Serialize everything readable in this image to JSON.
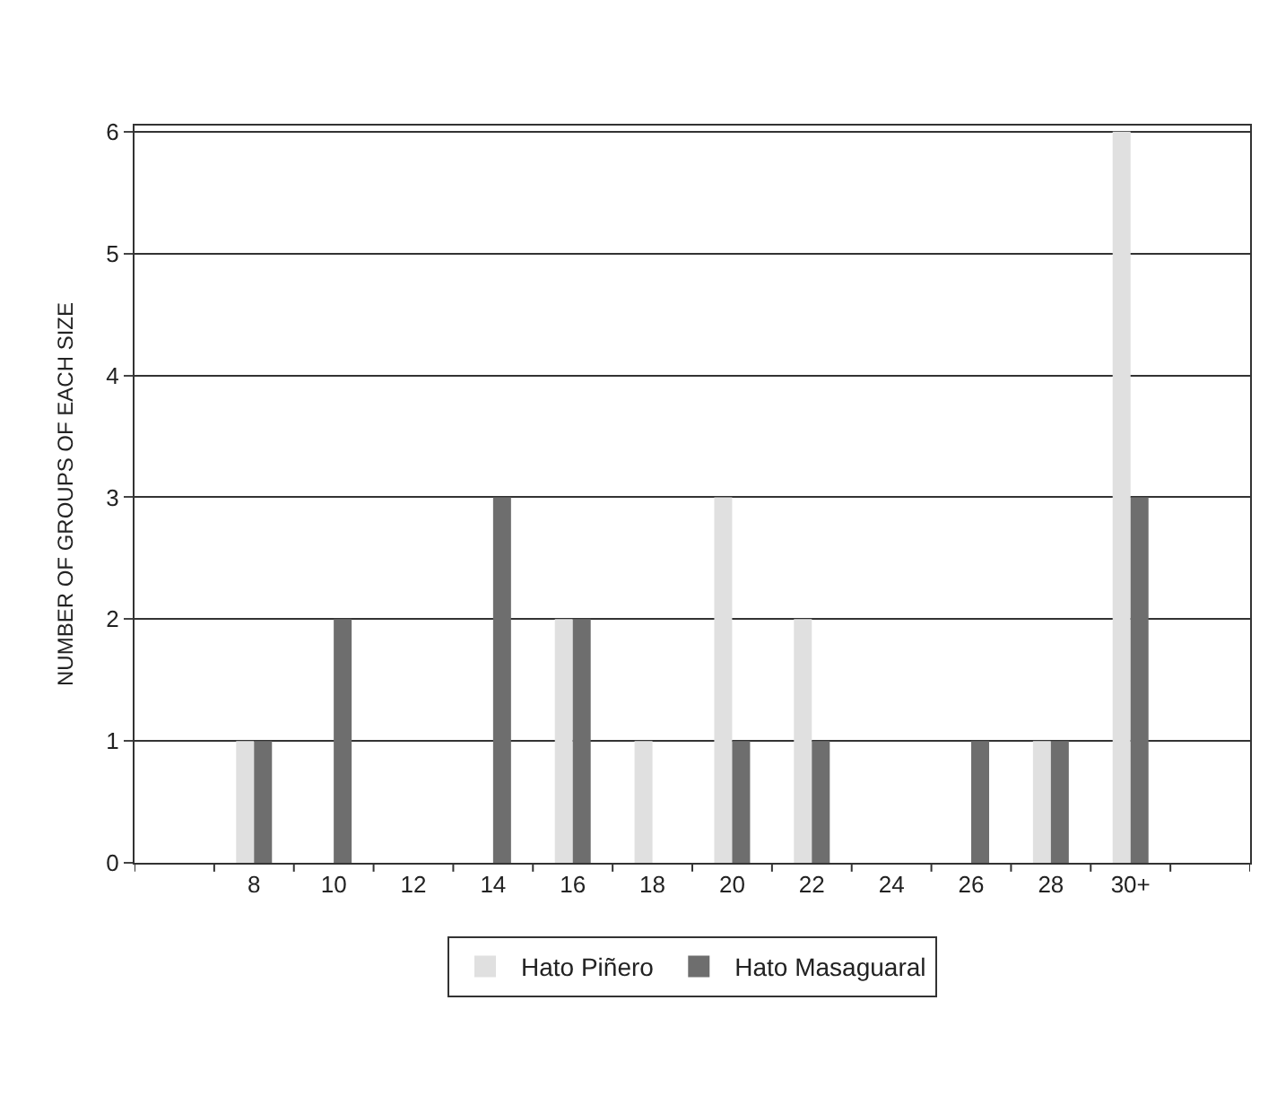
{
  "chart_data": {
    "type": "bar",
    "ylabel": "NUMBER OF GROUPS OF EACH SIZE",
    "categories": [
      null,
      "8",
      "10",
      "12",
      "14",
      "16",
      "18",
      "20",
      "22",
      "24",
      "26",
      "28",
      "30+",
      null
    ],
    "series": [
      {
        "name": "Hato Piñero",
        "color": "#e0e0e0",
        "values": [
          0,
          1,
          0,
          0,
          0,
          2,
          1,
          3,
          2,
          0,
          0,
          1,
          6,
          0
        ]
      },
      {
        "name": "Hato Masaguaral",
        "color": "#6e6e6e",
        "values": [
          0,
          1,
          2,
          0,
          3,
          2,
          0,
          1,
          1,
          0,
          1,
          1,
          3,
          0
        ]
      }
    ],
    "ylim": [
      0,
      6.05
    ],
    "yticks": [
      0,
      1,
      2,
      3,
      4,
      5,
      6
    ],
    "grid": "y",
    "legend": "bottom"
  }
}
